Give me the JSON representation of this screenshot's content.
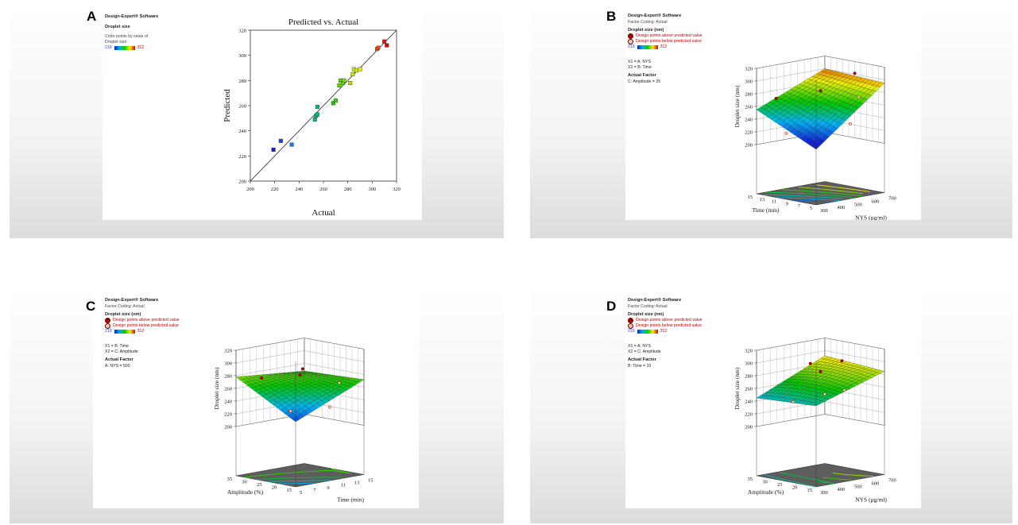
{
  "panels": {
    "A": {
      "letter": "A",
      "legend": {
        "software": "Design-Expert® Software",
        "response": "Droplet size",
        "color_note_1": "Color points by value of",
        "color_note_2": "Droplet size:",
        "color_min": "219",
        "color_max": "312"
      }
    },
    "B": {
      "letter": "B",
      "legend": {
        "software": "Design-Expert® Software",
        "coding": "Factor Coding: Actual",
        "response": "Droplet size (nm)",
        "above": "Design points above predicted value",
        "below": "Design points below predicted value",
        "color_min": "219",
        "color_max": "312",
        "x1": "X1 = A: NYS",
        "x2": "X2 = B: Time",
        "actual_factor": "Actual Factor",
        "fixed": "C: Amplitude = 25"
      }
    },
    "C": {
      "letter": "C",
      "legend": {
        "software": "Design-Expert® Software",
        "coding": "Factor Coding: Actual",
        "response": "Droplet size (nm)",
        "above": "Design points above predicted value",
        "below": "Design points below predicted value",
        "color_min": "219",
        "color_max": "312",
        "x1": "X1 = B: Time",
        "x2": "X2 = C: Amplitude",
        "actual_factor": "Actual Factor",
        "fixed": "A: NYS = 500"
      }
    },
    "D": {
      "letter": "D",
      "legend": {
        "software": "Design-Expert® Software",
        "coding": "Factor Coding: Actual",
        "response": "Droplet size (nm)",
        "above": "Design points above predicted value",
        "below": "Design points below predicted value",
        "color_min": "219",
        "color_max": "312",
        "x1": "X1 = A: NYS",
        "x2": "X2 = C: Amplitude",
        "actual_factor": "Actual Factor",
        "fixed": "B: Time = 10"
      }
    }
  },
  "chart_data": [
    {
      "id": "A",
      "type": "scatter",
      "title": "Predicted vs. Actual",
      "xlabel": "Actual",
      "ylabel": "Predicted",
      "xlim": [
        200,
        320
      ],
      "ylim": [
        200,
        320
      ],
      "xticks": [
        "200",
        "220",
        "240",
        "260",
        "280",
        "300",
        "320"
      ],
      "yticks": [
        "200",
        "220",
        "240",
        "260",
        "280",
        "300",
        "320"
      ],
      "reference_line": [
        [
          200,
          200
        ],
        [
          320,
          320
        ]
      ],
      "points": [
        {
          "x": 219,
          "y": 225
        },
        {
          "x": 225,
          "y": 232
        },
        {
          "x": 234,
          "y": 229
        },
        {
          "x": 253,
          "y": 249
        },
        {
          "x": 254,
          "y": 252
        },
        {
          "x": 255,
          "y": 253
        },
        {
          "x": 255,
          "y": 259
        },
        {
          "x": 268,
          "y": 262
        },
        {
          "x": 270,
          "y": 264
        },
        {
          "x": 273,
          "y": 276
        },
        {
          "x": 274,
          "y": 280
        },
        {
          "x": 276,
          "y": 278
        },
        {
          "x": 277,
          "y": 280
        },
        {
          "x": 282,
          "y": 278
        },
        {
          "x": 284,
          "y": 285
        },
        {
          "x": 285,
          "y": 289
        },
        {
          "x": 287,
          "y": 288
        },
        {
          "x": 290,
          "y": 289
        },
        {
          "x": 304,
          "y": 305
        },
        {
          "x": 305,
          "y": 306
        },
        {
          "x": 310,
          "y": 311
        },
        {
          "x": 312,
          "y": 308
        }
      ]
    },
    {
      "id": "B",
      "type": "surface",
      "zlabel": "Droplet size (nm)",
      "zticks": [
        "200",
        "220",
        "240",
        "260",
        "280",
        "300",
        "320"
      ],
      "xlabel": "NYS (μg/ml)",
      "xticks": [
        "300",
        "400",
        "500",
        "600",
        "700"
      ],
      "ylabel": "Time (min)",
      "yticks": [
        "5",
        "7",
        "9",
        "11",
        "13",
        "15"
      ],
      "corners_z": {
        "x0y0": 210,
        "x1y0": 295,
        "x0y1": 255,
        "x1y1": 300,
        "center": 268
      }
    },
    {
      "id": "C",
      "type": "surface",
      "zlabel": "Droplet size (nm)",
      "zticks": [
        "200",
        "220",
        "240",
        "260",
        "280",
        "300",
        "320"
      ],
      "xlabel": "Time (min)",
      "xticks": [
        "5",
        "7",
        "9",
        "11",
        "13",
        "15"
      ],
      "ylabel": "Amplitude (%)",
      "yticks": [
        "15",
        "20",
        "25",
        "30",
        "35"
      ],
      "corners_z": {
        "x0y0": 225,
        "x1y0": 272,
        "x0y1": 278,
        "x1y1": 268,
        "center": 282
      }
    },
    {
      "id": "D",
      "type": "surface",
      "zlabel": "Droplet size (nm)",
      "zticks": [
        "200",
        "220",
        "240",
        "260",
        "280",
        "300",
        "320"
      ],
      "xlabel": "NYS (μg/ml)",
      "xticks": [
        "300",
        "400",
        "500",
        "600",
        "700"
      ],
      "ylabel": "Amplitude (%)",
      "yticks": [
        "15",
        "20",
        "25",
        "30",
        "35"
      ],
      "corners_z": {
        "x0y0": 250,
        "x1y0": 285,
        "x0y1": 245,
        "x1y1": 292,
        "center": 290
      }
    }
  ]
}
